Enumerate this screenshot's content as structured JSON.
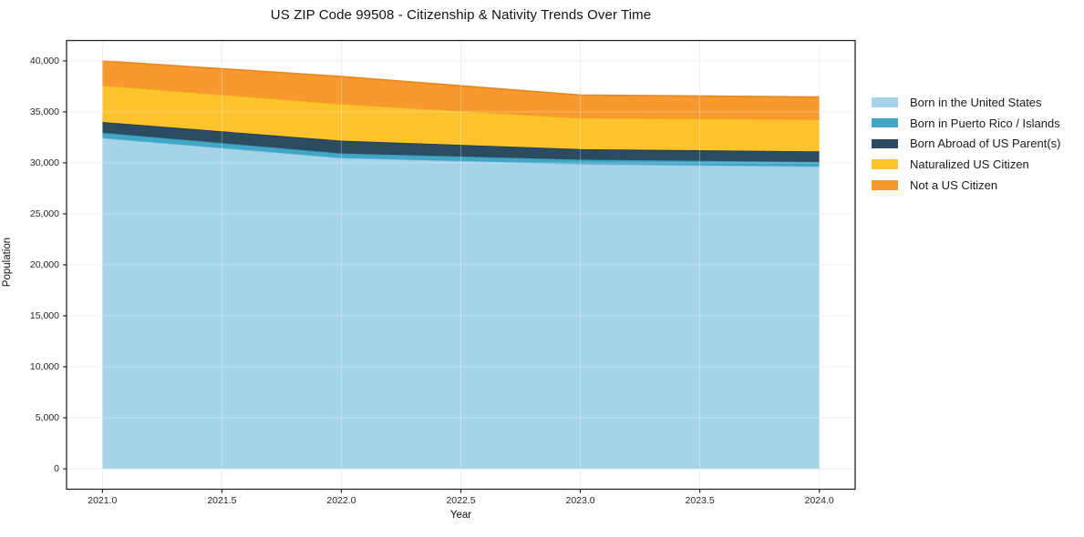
{
  "chart_data": {
    "type": "area",
    "stacked": true,
    "title": "US ZIP Code 99508 - Citizenship & Nativity Trends Over Time",
    "xlabel": "Year",
    "ylabel": "Population",
    "grid": true,
    "legend_position": "right-outside",
    "background_color": "#ffffff",
    "grid_color": "#e8e8e8",
    "spine_color": "#262626",
    "x": [
      2021,
      2022,
      2023,
      2024
    ],
    "xlim": [
      2020.85,
      2024.15
    ],
    "ylim": [
      -2000,
      42000
    ],
    "xticks": {
      "values": [
        2021.0,
        2021.5,
        2022.0,
        2022.5,
        2023.0,
        2023.5,
        2024.0
      ],
      "labels": [
        "2021.0",
        "2021.5",
        "2022.0",
        "2022.5",
        "2023.0",
        "2023.5",
        "2024.0"
      ]
    },
    "yticks": {
      "values": [
        0,
        5000,
        10000,
        15000,
        20000,
        25000,
        30000,
        35000,
        40000
      ],
      "labels": [
        "0",
        "5,000",
        "10,000",
        "15,000",
        "20,000",
        "25,000",
        "30,000",
        "35,000",
        "40,000"
      ]
    },
    "series": [
      {
        "name": "Born in the United States",
        "color": "#a5d3e9",
        "edge_color": "#8fc4de",
        "values": [
          32430,
          30480,
          29880,
          29640
        ]
      },
      {
        "name": "Born in Puerto Rico / Islands",
        "color": "#42a7c7",
        "edge_color": "#3795b3",
        "values": [
          530,
          450,
          440,
          450
        ]
      },
      {
        "name": "Born Abroad of US Parent(s)",
        "color": "#2b4c5e",
        "edge_color": "#233f4f",
        "values": [
          1050,
          1250,
          1030,
          1040
        ]
      },
      {
        "name": "Naturalized US Citizen",
        "color": "#fcc32d",
        "edge_color": "#eab117",
        "values": [
          3590,
          3590,
          3050,
          3140
        ]
      },
      {
        "name": "Not a US Citizen",
        "color": "#f8992f",
        "edge_color": "#e9871d",
        "values": [
          2390,
          2700,
          2250,
          2190
        ]
      }
    ],
    "totals": [
      39990,
      38470,
      36650,
      36460
    ]
  }
}
